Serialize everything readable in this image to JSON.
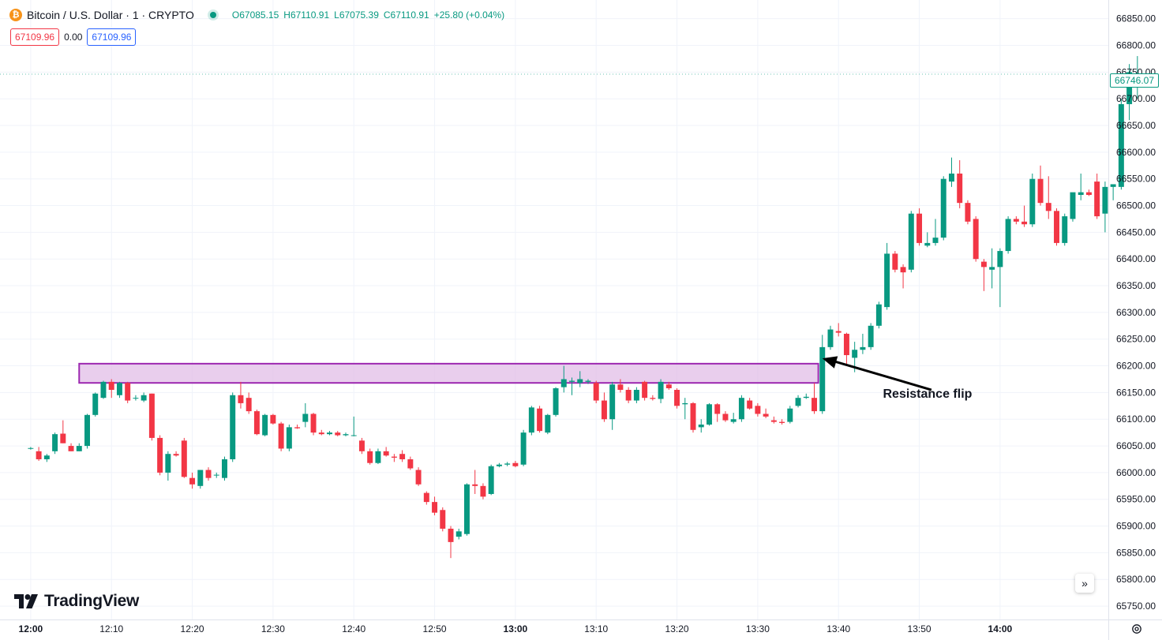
{
  "header": {
    "icon_glyph": "₿",
    "symbol_title": "Bitcoin / U.S. Dollar · 1 · CRYPTO",
    "ohlc": {
      "o_key": "O",
      "o": "67085.15",
      "h_key": "H",
      "h": "67110.91",
      "l_key": "L",
      "l": "67075.39",
      "c_key": "C",
      "c": "67110.91",
      "change": "+25.80 (+0.04%)"
    },
    "sell_price": "67109.96",
    "spread": "0.00",
    "buy_price": "67109.96"
  },
  "last_price_label": "66746.07",
  "branding": {
    "logo_text": "TradingView"
  },
  "controls": {
    "scroll_glyph": "»",
    "settings_icon": "settings-icon"
  },
  "colors": {
    "up": "#089981",
    "down": "#f23645",
    "zone": "#9c27b0",
    "zone_fill": "#e1bee7",
    "grid": "#f0f3fa"
  },
  "chart_data": {
    "type": "candlestick",
    "ylim": [
      65725,
      66885
    ],
    "yticks": [
      65750,
      65800,
      65850,
      65900,
      65950,
      66000,
      66050,
      66100,
      66150,
      66200,
      66250,
      66300,
      66350,
      66400,
      66450,
      66500,
      66550,
      66600,
      66650,
      66700,
      66750,
      66800,
      66850
    ],
    "ytick_labels": [
      "65750.00",
      "65800.00",
      "65850.00",
      "65900.00",
      "65950.00",
      "66000.00",
      "66050.00",
      "66100.00",
      "66150.00",
      "66200.00",
      "66250.00",
      "66300.00",
      "66350.00",
      "66400.00",
      "66450.00",
      "66500.00",
      "66550.00",
      "66600.00",
      "66650.00",
      "66700.00",
      "66750.00",
      "66800.00",
      "66850.00"
    ],
    "xlabels": [
      {
        "label": "12:00",
        "t": 0,
        "bold": true
      },
      {
        "label": "12:10",
        "t": 10,
        "bold": false
      },
      {
        "label": "12:20",
        "t": 20,
        "bold": false
      },
      {
        "label": "12:30",
        "t": 30,
        "bold": false
      },
      {
        "label": "12:40",
        "t": 40,
        "bold": false
      },
      {
        "label": "12:50",
        "t": 50,
        "bold": false
      },
      {
        "label": "13:00",
        "t": 60,
        "bold": true
      },
      {
        "label": "13:10",
        "t": 70,
        "bold": false
      },
      {
        "label": "13:20",
        "t": 80,
        "bold": false
      },
      {
        "label": "13:30",
        "t": 90,
        "bold": false
      },
      {
        "label": "13:40",
        "t": 100,
        "bold": false
      },
      {
        "label": "13:50",
        "t": 110,
        "bold": false
      },
      {
        "label": "14:00",
        "t": 120,
        "bold": true
      }
    ],
    "t_range": [
      -3.8,
      133.4
    ],
    "candles": [
      {
        "o": 66045,
        "h": 66048,
        "l": 66043,
        "c": 66046
      },
      {
        "o": 66040,
        "h": 66048,
        "l": 66022,
        "c": 66025
      },
      {
        "o": 66025,
        "h": 66035,
        "l": 66020,
        "c": 66032
      },
      {
        "o": 66040,
        "h": 66075,
        "l": 66035,
        "c": 66072
      },
      {
        "o": 66073,
        "h": 66098,
        "l": 66055,
        "c": 66055
      },
      {
        "o": 66050,
        "h": 66055,
        "l": 66040,
        "c": 66040
      },
      {
        "o": 66040,
        "h": 66055,
        "l": 66040,
        "c": 66050
      },
      {
        "o": 66050,
        "h": 66110,
        "l": 66045,
        "c": 66108
      },
      {
        "o": 66108,
        "h": 66150,
        "l": 66105,
        "c": 66148
      },
      {
        "o": 66140,
        "h": 66172,
        "l": 66138,
        "c": 66170
      },
      {
        "o": 66170,
        "h": 66175,
        "l": 66140,
        "c": 66155
      },
      {
        "o": 66145,
        "h": 66170,
        "l": 66140,
        "c": 66168
      },
      {
        "o": 66168,
        "h": 66170,
        "l": 66130,
        "c": 66135
      },
      {
        "o": 66140,
        "h": 66145,
        "l": 66135,
        "c": 66140
      },
      {
        "o": 66135,
        "h": 66150,
        "l": 66132,
        "c": 66145
      },
      {
        "o": 66148,
        "h": 66148,
        "l": 66060,
        "c": 66065
      },
      {
        "o": 66065,
        "h": 66070,
        "l": 65995,
        "c": 66000
      },
      {
        "o": 66000,
        "h": 66040,
        "l": 65985,
        "c": 66035
      },
      {
        "o": 66035,
        "h": 66040,
        "l": 66030,
        "c": 66032
      },
      {
        "o": 66060,
        "h": 66065,
        "l": 65990,
        "c": 65992
      },
      {
        "o": 65990,
        "h": 66000,
        "l": 65970,
        "c": 65978
      },
      {
        "o": 65975,
        "h": 66005,
        "l": 65970,
        "c": 66005
      },
      {
        "o": 66005,
        "h": 66010,
        "l": 65985,
        "c": 65990
      },
      {
        "o": 65995,
        "h": 66000,
        "l": 65990,
        "c": 65996
      },
      {
        "o": 65990,
        "h": 66030,
        "l": 65985,
        "c": 66025
      },
      {
        "o": 66025,
        "h": 66150,
        "l": 66020,
        "c": 66145
      },
      {
        "o": 66145,
        "h": 66170,
        "l": 66120,
        "c": 66130
      },
      {
        "o": 66140,
        "h": 66150,
        "l": 66110,
        "c": 66115
      },
      {
        "o": 66115,
        "h": 66118,
        "l": 66070,
        "c": 66072
      },
      {
        "o": 66070,
        "h": 66110,
        "l": 66068,
        "c": 66108
      },
      {
        "o": 66108,
        "h": 66110,
        "l": 66090,
        "c": 66092
      },
      {
        "o": 66092,
        "h": 66095,
        "l": 66040,
        "c": 66045
      },
      {
        "o": 66045,
        "h": 66090,
        "l": 66040,
        "c": 66085
      },
      {
        "o": 66085,
        "h": 66090,
        "l": 66082,
        "c": 66083
      },
      {
        "o": 66095,
        "h": 66130,
        "l": 66085,
        "c": 66110
      },
      {
        "o": 66110,
        "h": 66112,
        "l": 66070,
        "c": 66075
      },
      {
        "o": 66075,
        "h": 66080,
        "l": 66070,
        "c": 66072
      },
      {
        "o": 66072,
        "h": 66078,
        "l": 66070,
        "c": 66075
      },
      {
        "o": 66075,
        "h": 66078,
        "l": 66068,
        "c": 66070
      },
      {
        "o": 66070,
        "h": 66075,
        "l": 66068,
        "c": 66072
      },
      {
        "o": 66070,
        "h": 66105,
        "l": 66068,
        "c": 66070
      },
      {
        "o": 66060,
        "h": 66065,
        "l": 66035,
        "c": 66040
      },
      {
        "o": 66040,
        "h": 66045,
        "l": 66015,
        "c": 66018
      },
      {
        "o": 66018,
        "h": 66045,
        "l": 66016,
        "c": 66040
      },
      {
        "o": 66040,
        "h": 66048,
        "l": 66030,
        "c": 66032
      },
      {
        "o": 66030,
        "h": 66035,
        "l": 66020,
        "c": 66028
      },
      {
        "o": 66035,
        "h": 66042,
        "l": 66020,
        "c": 66025
      },
      {
        "o": 66025,
        "h": 66030,
        "l": 66005,
        "c": 66008
      },
      {
        "o": 66005,
        "h": 66010,
        "l": 65975,
        "c": 65978
      },
      {
        "o": 65962,
        "h": 65965,
        "l": 65940,
        "c": 65945
      },
      {
        "o": 65945,
        "h": 65955,
        "l": 65920,
        "c": 65925
      },
      {
        "o": 65930,
        "h": 65935,
        "l": 65890,
        "c": 65895
      },
      {
        "o": 65895,
        "h": 65900,
        "l": 65840,
        "c": 65870
      },
      {
        "o": 65880,
        "h": 65895,
        "l": 65875,
        "c": 65890
      },
      {
        "o": 65885,
        "h": 65980,
        "l": 65882,
        "c": 65978
      },
      {
        "o": 65978,
        "h": 66005,
        "l": 65960,
        "c": 65975
      },
      {
        "o": 65975,
        "h": 65980,
        "l": 65950,
        "c": 65955
      },
      {
        "o": 65960,
        "h": 66015,
        "l": 65958,
        "c": 66012
      },
      {
        "o": 66012,
        "h": 66018,
        "l": 66010,
        "c": 66015
      },
      {
        "o": 66015,
        "h": 66020,
        "l": 66012,
        "c": 66017
      },
      {
        "o": 66018,
        "h": 66022,
        "l": 66010,
        "c": 66012
      },
      {
        "o": 66015,
        "h": 66080,
        "l": 66012,
        "c": 66075
      },
      {
        "o": 66075,
        "h": 66125,
        "l": 66070,
        "c": 66122
      },
      {
        "o": 66120,
        "h": 66125,
        "l": 66075,
        "c": 66078
      },
      {
        "o": 66075,
        "h": 66110,
        "l": 66072,
        "c": 66108
      },
      {
        "o": 66108,
        "h": 66160,
        "l": 66105,
        "c": 66158
      },
      {
        "o": 66160,
        "h": 66200,
        "l": 66150,
        "c": 66175
      },
      {
        "o": 66170,
        "h": 66178,
        "l": 66145,
        "c": 66172
      },
      {
        "o": 66168,
        "h": 66190,
        "l": 66160,
        "c": 66175
      },
      {
        "o": 66170,
        "h": 66175,
        "l": 66166,
        "c": 66172
      },
      {
        "o": 66168,
        "h": 66172,
        "l": 66130,
        "c": 66135
      },
      {
        "o": 66135,
        "h": 66150,
        "l": 66095,
        "c": 66100
      },
      {
        "o": 66100,
        "h": 66170,
        "l": 66080,
        "c": 66165
      },
      {
        "o": 66165,
        "h": 66175,
        "l": 66150,
        "c": 66155
      },
      {
        "o": 66155,
        "h": 66160,
        "l": 66130,
        "c": 66135
      },
      {
        "o": 66135,
        "h": 66160,
        "l": 66130,
        "c": 66155
      },
      {
        "o": 66170,
        "h": 66172,
        "l": 66135,
        "c": 66140
      },
      {
        "o": 66140,
        "h": 66145,
        "l": 66135,
        "c": 66138
      },
      {
        "o": 66138,
        "h": 66175,
        "l": 66130,
        "c": 66170
      },
      {
        "o": 66165,
        "h": 66170,
        "l": 66155,
        "c": 66158
      },
      {
        "o": 66155,
        "h": 66158,
        "l": 66120,
        "c": 66125
      },
      {
        "o": 66128,
        "h": 66140,
        "l": 66100,
        "c": 66130
      },
      {
        "o": 66130,
        "h": 66132,
        "l": 66075,
        "c": 66080
      },
      {
        "o": 66085,
        "h": 66100,
        "l": 66075,
        "c": 66090
      },
      {
        "o": 66090,
        "h": 66130,
        "l": 66088,
        "c": 66128
      },
      {
        "o": 66128,
        "h": 66130,
        "l": 66095,
        "c": 66110
      },
      {
        "o": 66110,
        "h": 66115,
        "l": 66095,
        "c": 66098
      },
      {
        "o": 66095,
        "h": 66112,
        "l": 66092,
        "c": 66100
      },
      {
        "o": 66100,
        "h": 66145,
        "l": 66095,
        "c": 66140
      },
      {
        "o": 66135,
        "h": 66140,
        "l": 66118,
        "c": 66120
      },
      {
        "o": 66125,
        "h": 66130,
        "l": 66105,
        "c": 66110
      },
      {
        "o": 66110,
        "h": 66120,
        "l": 66102,
        "c": 66105
      },
      {
        "o": 66098,
        "h": 66105,
        "l": 66092,
        "c": 66095
      },
      {
        "o": 66095,
        "h": 66100,
        "l": 66090,
        "c": 66093
      },
      {
        "o": 66095,
        "h": 66125,
        "l": 66092,
        "c": 66120
      },
      {
        "o": 66125,
        "h": 66145,
        "l": 66122,
        "c": 66140
      },
      {
        "o": 66140,
        "h": 66148,
        "l": 66138,
        "c": 66142
      },
      {
        "o": 66140,
        "h": 66168,
        "l": 66110,
        "c": 66115
      },
      {
        "o": 66115,
        "h": 66258,
        "l": 66110,
        "c": 66235
      },
      {
        "o": 66235,
        "h": 66275,
        "l": 66230,
        "c": 66268
      },
      {
        "o": 66265,
        "h": 66280,
        "l": 66255,
        "c": 66262
      },
      {
        "o": 66260,
        "h": 66262,
        "l": 66200,
        "c": 66220
      },
      {
        "o": 66215,
        "h": 66245,
        "l": 66188,
        "c": 66230
      },
      {
        "o": 66230,
        "h": 66260,
        "l": 66222,
        "c": 66235
      },
      {
        "o": 66235,
        "h": 66280,
        "l": 66230,
        "c": 66275
      },
      {
        "o": 66275,
        "h": 66320,
        "l": 66270,
        "c": 66315
      },
      {
        "o": 66310,
        "h": 66430,
        "l": 66305,
        "c": 66410
      },
      {
        "o": 66410,
        "h": 66415,
        "l": 66375,
        "c": 66380
      },
      {
        "o": 66385,
        "h": 66390,
        "l": 66345,
        "c": 66375
      },
      {
        "o": 66380,
        "h": 66490,
        "l": 66375,
        "c": 66485
      },
      {
        "o": 66485,
        "h": 66495,
        "l": 66425,
        "c": 66430
      },
      {
        "o": 66425,
        "h": 66450,
        "l": 66422,
        "c": 66430
      },
      {
        "o": 66430,
        "h": 66475,
        "l": 66425,
        "c": 66440
      },
      {
        "o": 66440,
        "h": 66555,
        "l": 66435,
        "c": 66550
      },
      {
        "o": 66545,
        "h": 66590,
        "l": 66535,
        "c": 66560
      },
      {
        "o": 66560,
        "h": 66585,
        "l": 66495,
        "c": 66505
      },
      {
        "o": 66505,
        "h": 66510,
        "l": 66465,
        "c": 66470
      },
      {
        "o": 66475,
        "h": 66480,
        "l": 66395,
        "c": 66400
      },
      {
        "o": 66395,
        "h": 66400,
        "l": 66340,
        "c": 66385
      },
      {
        "o": 66380,
        "h": 66420,
        "l": 66345,
        "c": 66385
      },
      {
        "o": 66385,
        "h": 66420,
        "l": 66310,
        "c": 66415
      },
      {
        "o": 66415,
        "h": 66480,
        "l": 66410,
        "c": 66475
      },
      {
        "o": 66475,
        "h": 66480,
        "l": 66465,
        "c": 66470
      },
      {
        "o": 66470,
        "h": 66500,
        "l": 66460,
        "c": 66465
      },
      {
        "o": 66465,
        "h": 66560,
        "l": 66460,
        "c": 66550
      },
      {
        "o": 66550,
        "h": 66575,
        "l": 66500,
        "c": 66505
      },
      {
        "o": 66505,
        "h": 66555,
        "l": 66475,
        "c": 66490
      },
      {
        "o": 66490,
        "h": 66495,
        "l": 66425,
        "c": 66430
      },
      {
        "o": 66430,
        "h": 66485,
        "l": 66425,
        "c": 66480
      },
      {
        "o": 66475,
        "h": 66515,
        "l": 66470,
        "c": 66525
      },
      {
        "o": 66520,
        "h": 66560,
        "l": 66510,
        "c": 66525
      },
      {
        "o": 66525,
        "h": 66530,
        "l": 66518,
        "c": 66520
      },
      {
        "o": 66545,
        "h": 66560,
        "l": 66475,
        "c": 66480
      },
      {
        "o": 66485,
        "h": 66545,
        "l": 66450,
        "c": 66535
      },
      {
        "o": 66535,
        "h": 66540,
        "l": 66510,
        "c": 66540
      },
      {
        "o": 66535,
        "h": 66700,
        "l": 66530,
        "c": 66690
      },
      {
        "o": 66690,
        "h": 66765,
        "l": 66660,
        "c": 66750
      },
      {
        "o": 66746,
        "h": 66780,
        "l": 66700,
        "c": 66746
      }
    ],
    "zone": {
      "t_start": 6,
      "t_end": 97.5,
      "y_low": 66168,
      "y_high": 66204
    },
    "arrow": {
      "from_t": 111.5,
      "from_y": 66155,
      "to_t": 98,
      "to_y": 66214
    },
    "annotation": {
      "text": "Resistance flip",
      "t": 105.5,
      "y": 66140
    },
    "last_price": 66746.07
  }
}
